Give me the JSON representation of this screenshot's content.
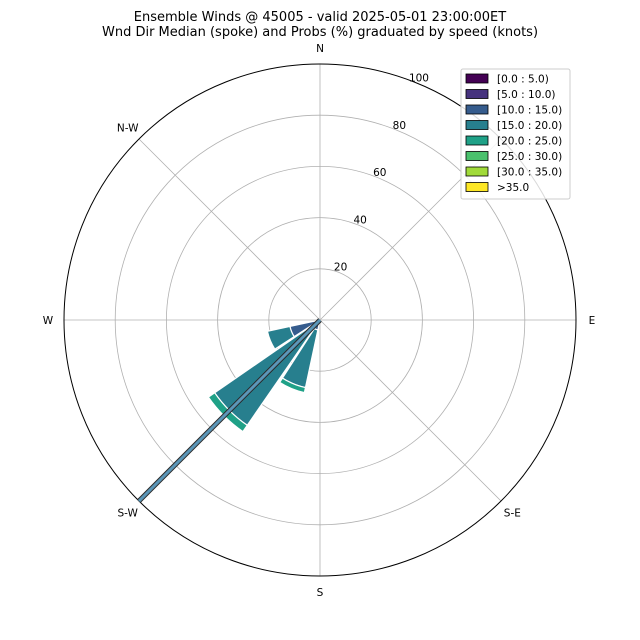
{
  "chart_data": {
    "type": "windrose",
    "title": "Ensemble Winds @ 45005 - valid 2025-05-01 23:00:00ET",
    "subtitle": "Wnd Dir Median (spoke) and Probs (%) graduated by speed (knots)",
    "direction_labels": [
      {
        "label": "N",
        "angle": 0
      },
      {
        "label": "N-W",
        "angle": 315
      },
      {
        "label": "W",
        "angle": 270
      },
      {
        "label": "S-W",
        "angle": 225
      },
      {
        "label": "S",
        "angle": 180
      },
      {
        "label": "S-E",
        "angle": 135
      },
      {
        "label": "E",
        "angle": 90
      }
    ],
    "radial_ticks": [
      20,
      40,
      60,
      80,
      100
    ],
    "rmax": 100,
    "grid": true,
    "legend_position": "top-right",
    "speed_bins": [
      "[0.0 : 5.0)",
      "[5.0 : 10.0)",
      "[10.0 : 15.0)",
      "[15.0 : 20.0)",
      "[20.0 : 25.0)",
      "[25.0 : 30.0)",
      "[30.0 : 35.0)",
      ">35.0"
    ],
    "colors": [
      "#440154",
      "#46327e",
      "#365c8d",
      "#277f8e",
      "#1fa187",
      "#4ac16d",
      "#a0da39",
      "#fde725"
    ],
    "sectors": [
      {
        "direction": 202.5,
        "cumulative": [
          0,
          2,
          4,
          27,
          29,
          29,
          29,
          29
        ]
      },
      {
        "direction": 225,
        "cumulative": [
          0,
          2,
          5,
          50,
          53,
          53,
          53,
          53
        ]
      },
      {
        "direction": 247.5,
        "cumulative": [
          0,
          2,
          12,
          21,
          21,
          21,
          21,
          21
        ]
      }
    ],
    "median_spoke": {
      "direction": 225,
      "length": 100
    }
  }
}
